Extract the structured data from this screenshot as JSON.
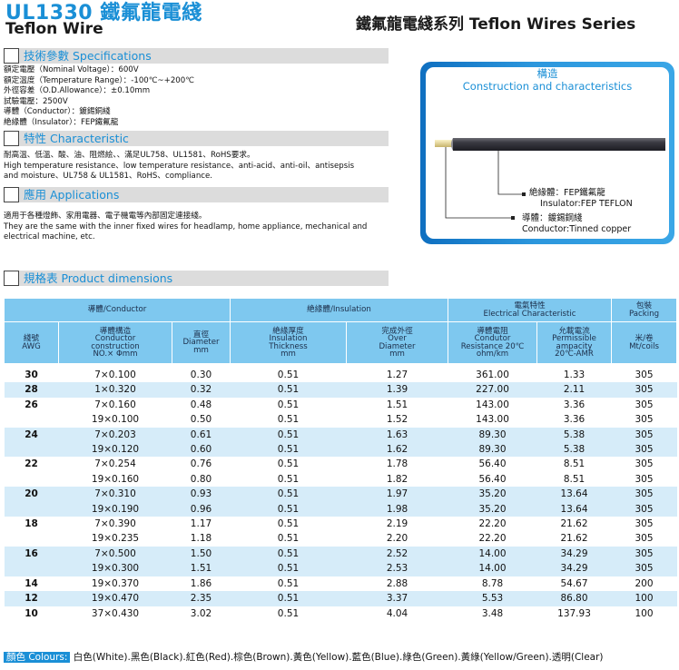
{
  "header": {
    "title_main": "UL1330 鐵氟龍電綫",
    "title_sub": "Teflon Wire",
    "title_right": "鐵氟龍電綫系列 Teflon Wires Series"
  },
  "sections": {
    "specifications": {
      "label": "技術參數 Specifications",
      "lines": [
        "額定電壓（Nominal Voltage）：600V",
        "額定溫度（Temperature Range）：-100℃~+200℃",
        "外徑容差（O.D.Allowance）：±0.10mm",
        "試驗電壓：2500V",
        "導體（Conductor）：鍍錫銅綫",
        "絶緣體（Insulator）：FEP鐵氟龍"
      ]
    },
    "characteristic": {
      "label": "特性 Characteristic",
      "lines": [
        "耐高溫、低溫、酸、油、阻燃絵、、滿足UL758、UL1581、RoHS要求。",
        "High temperature resistance、low temperature resistance、anti-acid、anti-oil、antisepsis",
        "and moisture、UL758 & UL1581、RoHS、compliance."
      ]
    },
    "applications": {
      "label": "應用 Applications",
      "lines": [
        "適用于各種燈飾、家用電器、電子機電等內部固定連接綫。",
        "They are the same with the inner fixed wires for headlamp, home appliance, mechanical and",
        "electrical machine, etc."
      ]
    },
    "dimensions": {
      "label": "規格表 Product dimensions"
    }
  },
  "construction": {
    "title_zh": "構造",
    "title_en": "Construction and characteristics",
    "insulator_zh": "絶緣體：FEP鐵氟龍",
    "insulator_en": "Insulator:FEP TEFLON",
    "conductor_zh": "導體：鍍錫銅綫",
    "conductor_en": "Conductor:Tinned copper"
  },
  "table": {
    "groups": {
      "conductor": "導體/Conductor",
      "insulation": "絶緣體/Insulation",
      "electrical_zh": "電氣特性",
      "electrical_en": "Electrical Characteristic",
      "packing_zh": "包裝",
      "packing_en": "Packing"
    },
    "columns": {
      "awg": [
        "綫號",
        "AWG"
      ],
      "construction": [
        "導體構造",
        "Conductor",
        "construction",
        "NO.× Φmm"
      ],
      "diameter": [
        "直徑",
        "Diameter",
        "mm"
      ],
      "thickness": [
        "絶緣厚度",
        "Insulation",
        "Thickness",
        "mm"
      ],
      "overdia": [
        "完成外徑",
        "Over",
        "Diameter",
        "mm"
      ],
      "resistance": [
        "導體電阻",
        "Condutor",
        "Resistance 20℃",
        "ohm/km"
      ],
      "ampacity": [
        "允載電流",
        "Permissible",
        "ampacity",
        "20℃-AMR"
      ],
      "packing": [
        "米/卷",
        "Mt/coils"
      ]
    },
    "rows": [
      {
        "awg": "30",
        "c": "7×0.100",
        "d": "0.30",
        "t": "0.51",
        "o": "1.27",
        "r": "361.00",
        "a": "1.33",
        "p": "305"
      },
      {
        "awg": "28",
        "c": "1×0.320",
        "d": "0.32",
        "t": "0.51",
        "o": "1.39",
        "r": "227.00",
        "a": "2.11",
        "p": "305"
      },
      {
        "awg": "26",
        "c": "7×0.160",
        "d": "0.48",
        "t": "0.51",
        "o": "1.51",
        "r": "143.00",
        "a": "3.36",
        "p": "305"
      },
      {
        "awg": "",
        "c": "19×0.100",
        "d": "0.50",
        "t": "0.51",
        "o": "1.52",
        "r": "143.00",
        "a": "3.36",
        "p": "305"
      },
      {
        "awg": "24",
        "c": "7×0.203",
        "d": "0.61",
        "t": "0.51",
        "o": "1.63",
        "r": "89.30",
        "a": "5.38",
        "p": "305"
      },
      {
        "awg": "",
        "c": "19×0.120",
        "d": "0.60",
        "t": "0.51",
        "o": "1.62",
        "r": "89.30",
        "a": "5.38",
        "p": "305"
      },
      {
        "awg": "22",
        "c": "7×0.254",
        "d": "0.76",
        "t": "0.51",
        "o": "1.78",
        "r": "56.40",
        "a": "8.51",
        "p": "305"
      },
      {
        "awg": "",
        "c": "19×0.160",
        "d": "0.80",
        "t": "0.51",
        "o": "1.82",
        "r": "56.40",
        "a": "8.51",
        "p": "305"
      },
      {
        "awg": "20",
        "c": "7×0.310",
        "d": "0.93",
        "t": "0.51",
        "o": "1.97",
        "r": "35.20",
        "a": "13.64",
        "p": "305"
      },
      {
        "awg": "",
        "c": "19×0.190",
        "d": "0.96",
        "t": "0.51",
        "o": "1.98",
        "r": "35.20",
        "a": "13.64",
        "p": "305"
      },
      {
        "awg": "18",
        "c": "7×0.390",
        "d": "1.17",
        "t": "0.51",
        "o": "2.19",
        "r": "22.20",
        "a": "21.62",
        "p": "305"
      },
      {
        "awg": "",
        "c": "19×0.235",
        "d": "1.18",
        "t": "0.51",
        "o": "2.20",
        "r": "22.20",
        "a": "21.62",
        "p": "305"
      },
      {
        "awg": "16",
        "c": "7×0.500",
        "d": "1.50",
        "t": "0.51",
        "o": "2.52",
        "r": "14.00",
        "a": "34.29",
        "p": "305"
      },
      {
        "awg": "",
        "c": "19×0.300",
        "d": "1.51",
        "t": "0.51",
        "o": "2.53",
        "r": "14.00",
        "a": "34.29",
        "p": "305"
      },
      {
        "awg": "14",
        "c": "19×0.370",
        "d": "1.86",
        "t": "0.51",
        "o": "2.88",
        "r": "8.78",
        "a": "54.67",
        "p": "200"
      },
      {
        "awg": "12",
        "c": "19×0.470",
        "d": "2.35",
        "t": "0.51",
        "o": "3.37",
        "r": "5.53",
        "a": "86.80",
        "p": "100"
      },
      {
        "awg": "10",
        "c": "37×0.430",
        "d": "3.02",
        "t": "0.51",
        "o": "4.04",
        "r": "3.48",
        "a": "137.93",
        "p": "100"
      }
    ],
    "shade_color": "#d6ecf9",
    "header_color": "#7ec8ef"
  },
  "colours": {
    "label": "顏色 Colours:",
    "text": "白色(White).黑色(Black).紅色(Red).棕色(Brown).黃色(Yellow).藍色(Blue).綠色(Green).黃綠(Yellow/Green).透明(Clear)"
  },
  "accent_color": "#1a8fd6"
}
